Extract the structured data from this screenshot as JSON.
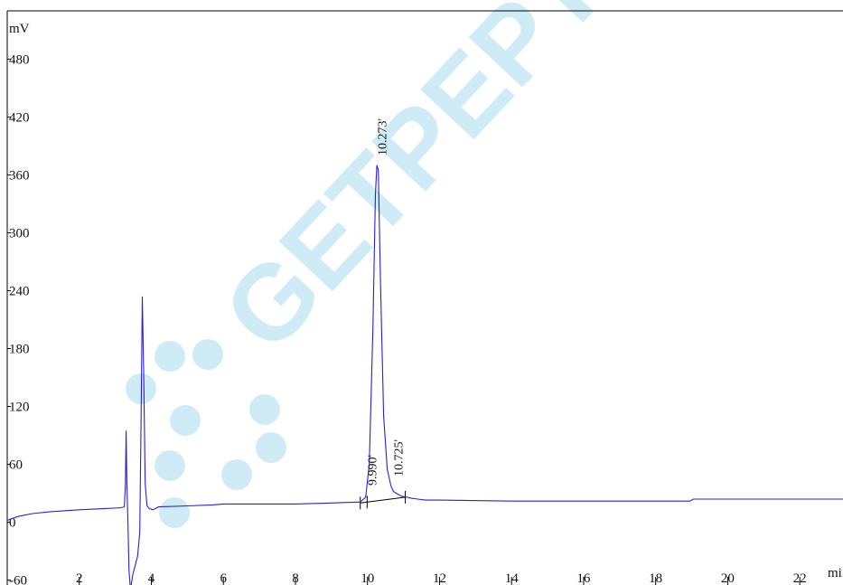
{
  "chart_data": {
    "type": "line",
    "title": "",
    "xlabel": "mi",
    "ylabel": "mV",
    "xlim": [
      0,
      23.2
    ],
    "ylim": [
      -65,
      530
    ],
    "x_ticks": [
      2,
      4,
      6,
      8,
      10,
      12,
      14,
      16,
      18,
      20,
      22
    ],
    "y_ticks": [
      -60,
      0,
      60,
      120,
      180,
      240,
      300,
      360,
      420,
      480
    ],
    "grid": false,
    "colors": {
      "trace": "#2a1fd6",
      "axis": "#000000",
      "baseline": "#000000",
      "watermark": "#9fd8ea"
    },
    "series": [
      {
        "points": [
          [
            0.0,
            2
          ],
          [
            0.3,
            6
          ],
          [
            0.7,
            9
          ],
          [
            1.2,
            11
          ],
          [
            2.0,
            13
          ],
          [
            2.6,
            14
          ],
          [
            3.15,
            15
          ],
          [
            3.25,
            16
          ],
          [
            3.28,
            40
          ],
          [
            3.3,
            95
          ],
          [
            3.32,
            40
          ],
          [
            3.35,
            0
          ],
          [
            3.38,
            -50
          ],
          [
            3.42,
            -70
          ],
          [
            3.48,
            -55
          ],
          [
            3.55,
            -45
          ],
          [
            3.62,
            -35
          ],
          [
            3.68,
            -10
          ],
          [
            3.72,
            120
          ],
          [
            3.75,
            234
          ],
          [
            3.79,
            150
          ],
          [
            3.83,
            40
          ],
          [
            3.88,
            17
          ],
          [
            3.95,
            14
          ],
          [
            4.05,
            13
          ],
          [
            4.2,
            16
          ],
          [
            5.0,
            17
          ],
          [
            5.7,
            18
          ],
          [
            6.0,
            19
          ],
          [
            7.0,
            19
          ],
          [
            8.0,
            19
          ],
          [
            9.0,
            20
          ],
          [
            9.8,
            21
          ],
          [
            9.95,
            26
          ],
          [
            10.05,
            60
          ],
          [
            10.15,
            200
          ],
          [
            10.22,
            340
          ],
          [
            10.26,
            370
          ],
          [
            10.3,
            365
          ],
          [
            10.36,
            250
          ],
          [
            10.45,
            110
          ],
          [
            10.55,
            55
          ],
          [
            10.65,
            38
          ],
          [
            10.72,
            32
          ],
          [
            10.8,
            30
          ],
          [
            10.95,
            27
          ],
          [
            11.1,
            26
          ],
          [
            11.2,
            25
          ],
          [
            11.4,
            24
          ],
          [
            11.6,
            23
          ],
          [
            12.0,
            23
          ],
          [
            14.0,
            22
          ],
          [
            16.0,
            22
          ],
          [
            18.0,
            22
          ],
          [
            18.95,
            22
          ],
          [
            19.05,
            24
          ],
          [
            20.0,
            24
          ],
          [
            22.0,
            24
          ],
          [
            23.2,
            24
          ]
        ]
      }
    ],
    "integration_baseline": {
      "start": [
        9.8,
        20
      ],
      "end": [
        11.05,
        26
      ]
    },
    "annotations": [
      {
        "text": "10.273'",
        "x": 10.273
      },
      {
        "text": "9.990'",
        "x": 9.99
      },
      {
        "text": "10.725'",
        "x": 10.725
      }
    ],
    "watermark": "GETPEPTIDE"
  }
}
